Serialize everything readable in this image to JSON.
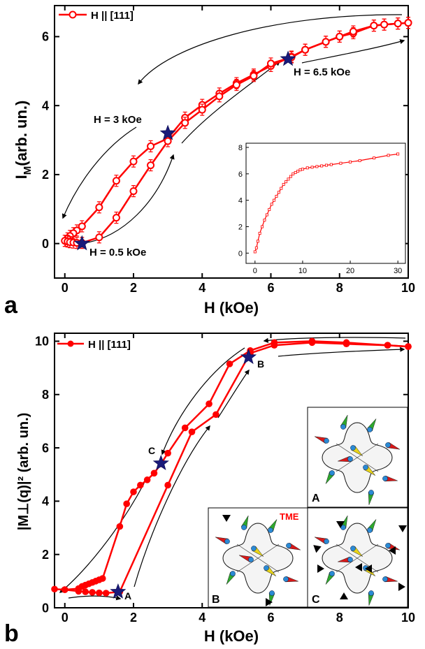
{
  "chart_data": [
    {
      "type": "line",
      "panel_label": "a",
      "xlabel": "H (kOe)",
      "ylabel_main": "I",
      "ylabel_sub": "M",
      "ylabel_rest": "(arb. un.)",
      "xlim": [
        -0.3,
        10
      ],
      "ylim": [
        -1,
        6.9
      ],
      "xticks": [
        0,
        2,
        4,
        6,
        8,
        10
      ],
      "yticks": [
        0,
        2,
        4,
        6
      ],
      "legend": "H || [111]",
      "legend_position": "top-left",
      "marker": "open-circle",
      "color": "#ff0000",
      "series": [
        {
          "x": [
            10,
            9.7,
            9.3,
            9.0,
            8.4,
            8.0,
            7.6,
            7.0,
            6.6,
            6.0,
            5.5,
            5.0,
            4.5,
            4.0,
            3.5,
            3.0,
            2.5,
            2.0,
            1.5,
            1.0,
            0.5,
            0.35,
            0.25,
            0.15,
            0.08,
            0.02
          ],
          "y": [
            6.4,
            6.38,
            6.35,
            6.32,
            6.1,
            6.0,
            5.85,
            5.62,
            5.42,
            5.15,
            4.9,
            4.65,
            4.35,
            4.02,
            3.65,
            3.05,
            2.82,
            2.38,
            1.82,
            1.05,
            0.5,
            0.38,
            0.3,
            0.22,
            0.15,
            0.08
          ]
        },
        {
          "x": [
            0,
            0.08,
            0.15,
            0.25,
            0.35,
            0.5,
            1.0,
            1.5,
            2.0,
            2.5,
            3.0,
            3.5,
            4.0,
            4.5,
            5.0,
            5.5,
            6.0,
            6.6,
            7.0,
            7.6,
            8.0,
            8.4,
            9.0,
            9.3,
            9.7,
            10
          ],
          "y": [
            0.08,
            0.06,
            0.04,
            0.03,
            0.02,
            0.02,
            0.18,
            0.75,
            1.52,
            2.27,
            2.97,
            3.5,
            3.88,
            4.27,
            4.6,
            4.86,
            5.22,
            5.4,
            5.62,
            5.85,
            6.0,
            6.15,
            6.32,
            6.35,
            6.38,
            6.4
          ]
        }
      ],
      "stars": [
        {
          "x": 0.5,
          "y": 0.0,
          "label": "H = 0.5 kOe"
        },
        {
          "x": 3.0,
          "y": 3.2,
          "label": "H = 3 kOe"
        },
        {
          "x": 6.5,
          "y": 5.35,
          "label": "H = 6.5 kOe"
        }
      ],
      "inset": {
        "xlim": [
          -1,
          31
        ],
        "ylim": [
          -0.3,
          8
        ],
        "xticks": [
          0,
          10,
          20,
          30
        ],
        "yticks": [
          0,
          2,
          4,
          6,
          8
        ],
        "x": [
          0,
          0.3,
          0.6,
          1,
          1.5,
          2,
          2.5,
          3,
          3.5,
          4,
          4.5,
          5,
          5.5,
          6,
          6.5,
          7,
          7.5,
          8,
          8.5,
          9,
          9.5,
          10,
          11,
          12,
          13,
          14,
          15,
          16,
          18,
          20,
          22,
          25,
          28,
          30
        ],
        "y": [
          0.1,
          0.4,
          0.9,
          1.5,
          2.0,
          2.5,
          2.9,
          3.3,
          3.7,
          4.0,
          4.3,
          4.6,
          4.9,
          5.2,
          5.4,
          5.6,
          5.8,
          6.0,
          6.1,
          6.2,
          6.3,
          6.35,
          6.45,
          6.5,
          6.55,
          6.6,
          6.65,
          6.7,
          6.8,
          6.9,
          7.0,
          7.2,
          7.4,
          7.5
        ]
      }
    },
    {
      "type": "line",
      "panel_label": "b",
      "xlabel": "H (kOe)",
      "ylabel": "|M⊥(q)|² (arb. un.)",
      "xlim": [
        -0.3,
        10
      ],
      "ylim": [
        0,
        10.3
      ],
      "xticks": [
        0,
        2,
        4,
        6,
        8,
        10
      ],
      "yticks": [
        0,
        2,
        4,
        6,
        8,
        10
      ],
      "legend": "H || [111]",
      "legend_position": "top-left",
      "marker": "filled-circle",
      "color": "#ff0000",
      "series": [
        {
          "x": [
            -0.3,
            0.0,
            0.4,
            0.5,
            0.6,
            0.7,
            0.8,
            0.9,
            1.0,
            1.1,
            1.6,
            1.8,
            2.0,
            2.2,
            2.4,
            2.6,
            2.8,
            3.0,
            3.5,
            4.2,
            4.8,
            5.4,
            6.1,
            7.2,
            8.2,
            9.4,
            10
          ],
          "y": [
            0.7,
            0.68,
            0.72,
            0.8,
            0.85,
            0.9,
            0.95,
            1.0,
            1.05,
            1.1,
            3.05,
            3.9,
            4.35,
            4.6,
            4.8,
            5.05,
            5.4,
            5.8,
            6.75,
            7.65,
            9.15,
            9.65,
            9.95,
            10.0,
            9.95,
            9.85,
            9.8
          ]
        },
        {
          "x": [
            0.0,
            0.4,
            0.6,
            0.8,
            1.0,
            1.2,
            1.6,
            3.0,
            3.7,
            4.4,
            5.4,
            6.1,
            7.2,
            8.2,
            9.4,
            10
          ],
          "y": [
            0.68,
            0.62,
            0.6,
            0.58,
            0.56,
            0.55,
            0.6,
            4.6,
            6.6,
            7.25,
            9.55,
            9.85,
            9.95,
            9.9,
            9.85,
            9.8
          ]
        }
      ],
      "stars": [
        {
          "x": 1.55,
          "y": 0.6,
          "label": "A"
        },
        {
          "x": 2.8,
          "y": 5.42,
          "label": "C"
        },
        {
          "x": 5.35,
          "y": 9.4,
          "label": "B"
        }
      ],
      "inset_labels": [
        "A",
        "B",
        "C"
      ],
      "inset_title": "TME",
      "inset_title_color": "#ff0000"
    }
  ],
  "colors": {
    "data": "#ff0000",
    "star": "#1a1a7a",
    "cone_red": "#d81818",
    "cone_green": "#2ea82e",
    "cone_yellow": "#e8d418",
    "sphere_blue": "#2a8ad4"
  }
}
